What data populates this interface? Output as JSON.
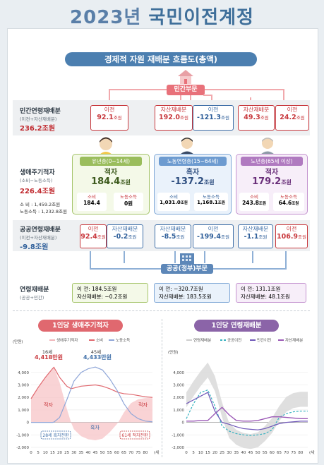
{
  "title": {
    "year": "2023년",
    "main": "국민이전계정"
  },
  "flow": {
    "heading": "경제적 자원 재배분 흐름도(총액)",
    "private_sector": "민간부문",
    "public_sector": "공공(정부)부문",
    "row_private": {
      "title": "민간연령재배분",
      "sub": "(이전+자산재배분)",
      "value": "236.2조원"
    },
    "row_lifecycle": {
      "title": "생애주기적자",
      "sub": "(소비−노동소득)",
      "value": "226.4조원",
      "consumption": "소     비 : 1,459.2조원",
      "labor": "노동소득 : 1,232.8조원"
    },
    "row_public": {
      "title": "공공연령재배분",
      "sub": "(이전+자산재배분)",
      "value": "-9.8조원"
    },
    "row_total": {
      "title": "연령재배분",
      "sub": "(공공+민간)"
    },
    "private_boxes": [
      {
        "k": "이전",
        "v": "92.1",
        "u": "조원"
      },
      {
        "k": "자산재배분",
        "v": "192.0",
        "u": "조원"
      },
      {
        "k": "이전",
        "v": "-121.3",
        "u": "조원"
      },
      {
        "k": "자산재배분",
        "v": "49.3",
        "u": "조원"
      },
      {
        "k": "이전",
        "v": "24.2",
        "u": "조원"
      }
    ],
    "public_boxes": [
      {
        "k": "이전",
        "v": "92.4",
        "u": "조원"
      },
      {
        "k": "자산재배분",
        "v": "-0.2",
        "u": "조원"
      },
      {
        "k": "자산재배분",
        "v": "-8.5",
        "u": "조원"
      },
      {
        "k": "이전",
        "v": "-199.4",
        "u": "조원"
      },
      {
        "k": "자산재배분",
        "v": "-1.1",
        "u": "조원"
      },
      {
        "k": "이전",
        "v": "106.9",
        "u": "조원"
      }
    ],
    "ages": [
      {
        "head": "유년층(0~14세)",
        "kind": "적자",
        "value": "184.4",
        "unit": "조원",
        "c_label": "소비",
        "c_val": "184.4",
        "l_label": "노동소득",
        "l_val": "0",
        "l_unit": "원"
      },
      {
        "head": "노동연령층(15~64세)",
        "kind": "흑자",
        "value": "-137.2",
        "unit": "조원",
        "c_label": "소비",
        "c_val": "1,031.0",
        "l_label": "노동소득",
        "l_val": "1,168.1",
        "l_unit": "조원"
      },
      {
        "head": "노년층(65세 이상)",
        "kind": "적자",
        "value": "179.2",
        "unit": "조원",
        "c_label": "소비",
        "c_val": "243.8",
        "l_label": "노동소득",
        "l_val": "64.6",
        "l_unit": "조원"
      }
    ],
    "totals": [
      {
        "a": "이        전: 184.5조원",
        "b": "자산재배분:  −0.2조원"
      },
      {
        "a": "이        전: −320.7조원",
        "b": "자산재배분: 183.5조원"
      },
      {
        "a": "이        전: 131.1조원",
        "b": "자산재배분:  48.1조원"
      }
    ]
  },
  "chart_left": {
    "pill": "1인당 생애주기적자",
    "unit": "(만원)",
    "legend": [
      "생애주기적자",
      "소비",
      "노동소득"
    ],
    "ann_16": "16세",
    "ann_16_val": "4,418만원",
    "ann_45": "45세",
    "ann_45_val": "4,433만원",
    "label_deficit_l": "적자",
    "label_deficit_r": "적자",
    "label_surplus": "흑자",
    "callout_28": "28세 흑자전환",
    "callout_61": "61세 적자전환"
  },
  "chart_right": {
    "pill": "1인당 연령재배분",
    "unit": "(만원)",
    "legend": [
      "연령재배분",
      "공공이전",
      "민간이전",
      "자산재배분"
    ]
  },
  "axis": {
    "y": [
      "4,000",
      "3,000",
      "2,000",
      "1,000",
      "0",
      "-1,000",
      "-2,000"
    ],
    "x": [
      "0",
      "5",
      "10",
      "15",
      "20",
      "25",
      "30",
      "35",
      "40",
      "45",
      "50",
      "55",
      "60",
      "65",
      "70",
      "75",
      "80"
    ],
    "x_unit": "(세)"
  },
  "chart_data": [
    {
      "type": "line",
      "title": "1인당 생애주기적자",
      "ylabel": "(만원)",
      "x": [
        0,
        5,
        10,
        15,
        16,
        20,
        25,
        28,
        30,
        35,
        40,
        45,
        50,
        55,
        60,
        61,
        65,
        70,
        75,
        80,
        85
      ],
      "series": [
        {
          "name": "소비",
          "values": [
            1900,
            2800,
            3600,
            4300,
            4418,
            3600,
            2900,
            2700,
            2750,
            2900,
            2950,
            3000,
            2900,
            2700,
            2450,
            2400,
            2300,
            2250,
            2150,
            2050,
            2000
          ]
        },
        {
          "name": "노동소득",
          "values": [
            0,
            0,
            0,
            0,
            20,
            400,
            1800,
            2700,
            3300,
            4000,
            4300,
            4433,
            4200,
            3500,
            2600,
            2400,
            1500,
            700,
            300,
            100,
            50
          ]
        },
        {
          "name": "생애주기적자",
          "values": [
            1900,
            2800,
            3600,
            4300,
            4398,
            3200,
            1100,
            0,
            -550,
            -1100,
            -1350,
            -1433,
            -1300,
            -800,
            -150,
            0,
            800,
            1550,
            1850,
            1950,
            1950
          ]
        }
      ],
      "ylim": [
        -2000,
        4500
      ]
    },
    {
      "type": "line",
      "title": "1인당 연령재배분",
      "ylabel": "(만원)",
      "x": [
        0,
        5,
        10,
        15,
        20,
        25,
        30,
        35,
        40,
        45,
        50,
        55,
        60,
        65,
        70,
        75,
        80,
        85
      ],
      "series": [
        {
          "name": "연령재배분",
          "values": [
            1900,
            2800,
            3600,
            4300,
            3200,
            1100,
            -550,
            -1100,
            -1350,
            -1430,
            -1300,
            -800,
            -150,
            800,
            1550,
            1850,
            1950,
            1950
          ]
        },
        {
          "name": "공공이전",
          "values": [
            300,
            1500,
            2400,
            2600,
            1300,
            -300,
            -700,
            -900,
            -1000,
            -1050,
            -1000,
            -900,
            -600,
            400,
            700,
            850,
            900,
            900
          ]
        },
        {
          "name": "민간이전",
          "values": [
            1500,
            1800,
            2100,
            2400,
            900,
            0,
            -150,
            -350,
            -500,
            -550,
            -600,
            -500,
            -300,
            -100,
            0,
            50,
            100,
            100
          ]
        },
        {
          "name": "자산재배분",
          "values": [
            100,
            100,
            150,
            150,
            700,
            1200,
            600,
            150,
            100,
            100,
            150,
            300,
            450,
            450,
            400,
            350,
            300,
            300
          ]
        }
      ],
      "ylim": [
        -2000,
        4500
      ]
    }
  ]
}
